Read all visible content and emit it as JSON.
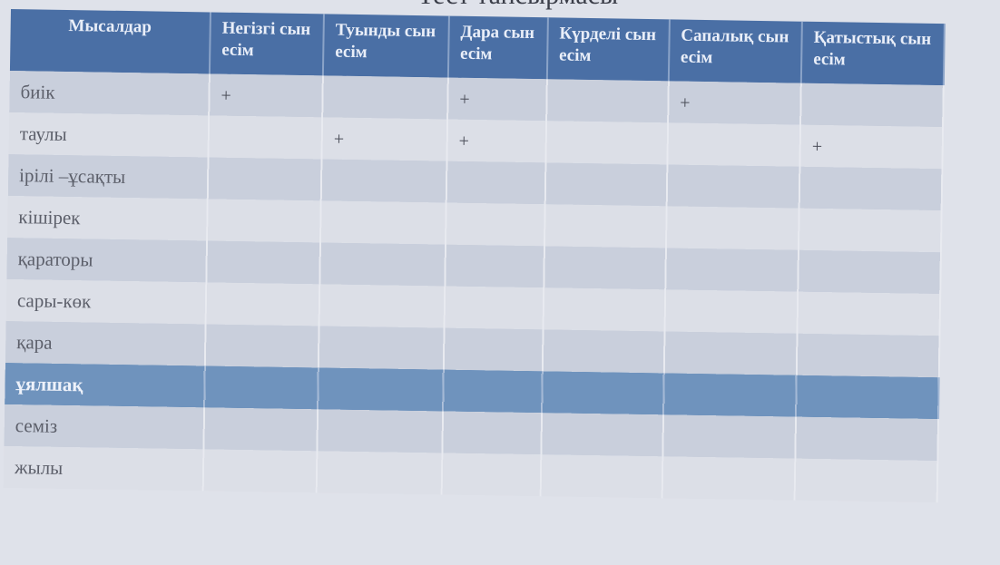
{
  "title": "Тест тапсырмасы",
  "table": {
    "headers": [
      "Мысалдар",
      "Негізгі сын есім",
      "Туынды сын есім",
      "Дара сын есім",
      "Күрделі сын есім",
      "Сапалық сын есім",
      "Қатыстық сын есім"
    ],
    "rows": [
      {
        "word": "биік",
        "marks": [
          "+",
          "",
          "+",
          "",
          "+",
          ""
        ]
      },
      {
        "word": "таулы",
        "marks": [
          "",
          "+",
          "+",
          "",
          "",
          "+"
        ]
      },
      {
        "word": "ірілі –ұсақты",
        "marks": [
          "",
          "",
          "",
          "",
          "",
          ""
        ]
      },
      {
        "word": "кішірек",
        "marks": [
          "",
          "",
          "",
          "",
          "",
          ""
        ]
      },
      {
        "word": "қараторы",
        "marks": [
          "",
          "",
          "",
          "",
          "",
          ""
        ]
      },
      {
        "word": "сары-көк",
        "marks": [
          "",
          "",
          "",
          "",
          "",
          ""
        ]
      },
      {
        "word": "қара",
        "marks": [
          "",
          "",
          "",
          "",
          "",
          ""
        ]
      },
      {
        "word": "ұялшақ",
        "marks": [
          "",
          "",
          "",
          "",
          "",
          ""
        ],
        "highlight": true
      },
      {
        "word": "семіз",
        "marks": [
          "",
          "",
          "",
          "",
          "",
          ""
        ]
      },
      {
        "word": "жылы",
        "marks": [
          "",
          "",
          "",
          "",
          "",
          ""
        ]
      }
    ]
  },
  "colors": {
    "header": "#4a6fa5",
    "highlight_row": "#6f93bd"
  }
}
